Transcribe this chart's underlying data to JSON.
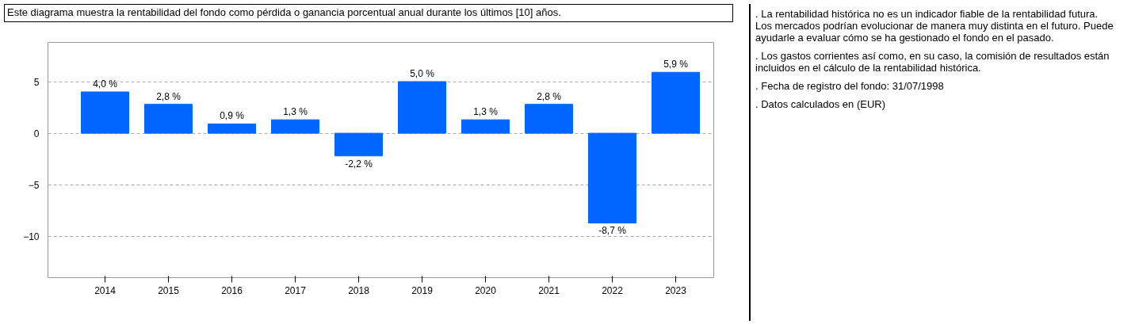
{
  "chart_data": {
    "type": "bar",
    "title": "Este diagrama muestra la rentabilidad del fondo como pérdida o ganancia porcentual anual durante los últimos [10] años.",
    "categories": [
      "2014",
      "2015",
      "2016",
      "2017",
      "2018",
      "2019",
      "2020",
      "2021",
      "2022",
      "2023"
    ],
    "values": [
      4.0,
      2.8,
      0.9,
      1.3,
      -2.2,
      5.0,
      1.3,
      2.8,
      -8.7,
      5.9
    ],
    "value_labels": [
      "4,0 %",
      "2,8 %",
      "0,9 %",
      "1,3 %",
      "-2,2 %",
      "5,0 %",
      "1,3 %",
      "2,8 %",
      "-8,7 %",
      "5,9 %"
    ],
    "color": "#0066ff",
    "ylim": [
      -14,
      8.8
    ],
    "yticks": [
      -10,
      -5,
      0,
      5
    ],
    "grid": "y",
    "annotations": [
      ". La rentabilidad histórica no es un indicador fiable de la rentabilidad futura. Los mercados podrían evolucionar de manera muy distinta en el futuro. Puede ayudarle a evaluar cómo se ha gestionado el fondo en el pasado.",
      ". Los gastos corrientes así como, en su caso, la comisión de resultados están incluidos en el cálculo de la rentabilidad histórica.",
      ". Fecha de registro del fondo: 31/07/1998",
      ". Datos calculados en (EUR)"
    ]
  }
}
